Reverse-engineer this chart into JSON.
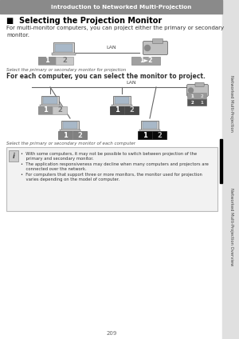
{
  "page_num": "209",
  "header_text": "Introduction to Networked Multi-Projection",
  "header_bg": "#8a8a8a",
  "header_text_color": "#ffffff",
  "title": "■  Selecting the Projection Monitor",
  "intro_text": "For multi-monitor computers, you can project either the primary or secondary\nmonitor.",
  "caption1": "Select the primary or secondary monitor for projection",
  "mid_text": "For each computer, you can select the monitor to project.",
  "caption2": "Select the primary or secondary monitor of each computer",
  "note_line1": "•  With some computers, it may not be possible to switch between projection of the",
  "note_line1b": "    primary and secondary monitor.",
  "note_line2": "•  The application responsiveness may decline when many computers and projectors are",
  "note_line2b": "    connected over the network.",
  "note_line3": "•  For computers that support three or more monitors, the monitor used for projection",
  "note_line3b": "    varies depending on the model of computer.",
  "sidebar_text1": "Networked Multi-Projection",
  "sidebar_text2": "Networked Multi-Projection Overview",
  "bg_color": "#ffffff",
  "note_bg": "#f2f2f2",
  "note_border": "#bbbbbb",
  "sidebar_bg": "#e0e0e0",
  "sidebar_accent": "#000000",
  "line_color": "#666666",
  "laptop_body_color": "#d8d8d8",
  "laptop_screen_color": "#a8b8c8",
  "projector_color": "#b8b8b8",
  "sel_light_bg": "#b0b0b0",
  "sel_dark_bg": "#404040",
  "sel_black_bg": "#101010",
  "sel_medium_bg": "#787878"
}
